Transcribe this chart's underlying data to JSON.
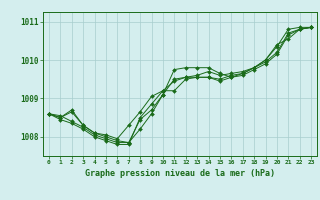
{
  "title": "Graphe pression niveau de la mer (hPa)",
  "background_color": "#d4eeee",
  "grid_color": "#a8cece",
  "line_color": "#1a6b1a",
  "xlim": [
    -0.5,
    23.5
  ],
  "ylim": [
    1007.5,
    1011.25
  ],
  "yticks": [
    1008,
    1009,
    1010,
    1011
  ],
  "xticks": [
    0,
    1,
    2,
    3,
    4,
    5,
    6,
    7,
    8,
    9,
    10,
    11,
    12,
    13,
    14,
    15,
    16,
    17,
    18,
    19,
    20,
    21,
    22,
    23
  ],
  "series": [
    [
      1008.6,
      1008.5,
      1008.7,
      1008.3,
      1008.1,
      1008.0,
      1007.9,
      1007.85,
      1008.2,
      1008.6,
      1009.1,
      1009.75,
      1009.8,
      1009.8,
      1009.8,
      1009.65,
      1009.55,
      1009.65,
      1009.8,
      1010.0,
      1010.35,
      1010.8,
      1010.85,
      1010.85
    ],
    [
      1008.6,
      1008.5,
      1008.65,
      1008.3,
      1008.1,
      1008.05,
      1007.95,
      1008.3,
      1008.65,
      1009.05,
      1009.2,
      1009.45,
      1009.55,
      1009.6,
      1009.7,
      1009.6,
      1009.65,
      1009.7,
      1009.8,
      1010.0,
      1010.4,
      1010.55,
      1010.8,
      1010.85
    ],
    [
      1008.6,
      1008.55,
      1008.4,
      1008.25,
      1008.05,
      1007.95,
      1007.85,
      1007.85,
      1008.45,
      1008.7,
      1009.1,
      1009.5,
      1009.55,
      1009.55,
      1009.55,
      1009.5,
      1009.6,
      1009.65,
      1009.8,
      1009.95,
      1010.2,
      1010.7,
      1010.8,
      1010.85
    ],
    [
      1008.6,
      1008.45,
      1008.35,
      1008.2,
      1008.0,
      1007.9,
      1007.8,
      1007.8,
      1008.5,
      1008.85,
      1009.2,
      1009.2,
      1009.5,
      1009.55,
      1009.55,
      1009.45,
      1009.55,
      1009.6,
      1009.75,
      1009.9,
      1010.15,
      1010.65,
      1010.8,
      1010.85
    ]
  ]
}
